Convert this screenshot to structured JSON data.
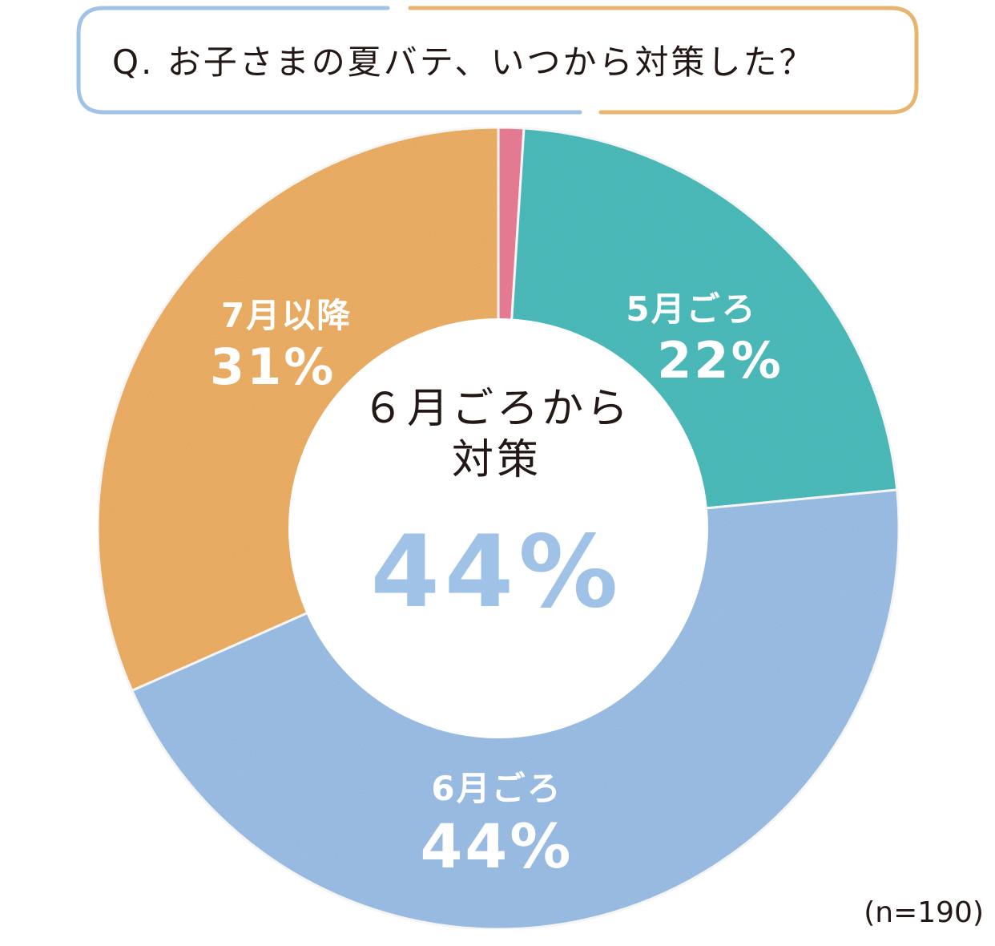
{
  "question": "Q. お子さまの夏バテ、いつから対策した？",
  "colors": {
    "may": "#4fbfbf",
    "june": "#9fc2ea",
    "july": "#f2b267",
    "other": "#ee8099",
    "frame_blue": "#9fc2e6",
    "frame_orange": "#e8b46f",
    "center_accent": "#9fc2e6"
  },
  "center": {
    "line1": "６月ごろから",
    "line2": "対策",
    "value": "44%"
  },
  "labels": {
    "may": {
      "name": "5月ごろ",
      "pct": "22%"
    },
    "june": {
      "name": "6月ごろ",
      "pct": "44%"
    },
    "july": {
      "name": "7月以降",
      "pct": "31%"
    }
  },
  "sample_size": "(n=190)",
  "chart_data": {
    "type": "pie",
    "variant": "donut",
    "title": "Q. お子さまの夏バテ、いつから対策した？",
    "start": "top",
    "direction": "clockwise",
    "slices": [
      {
        "label": "",
        "value": 1,
        "color": "#ee8099"
      },
      {
        "label": "5月ごろ",
        "value": 22,
        "color": "#4fbfbf"
      },
      {
        "label": "6月ごろ",
        "value": 44,
        "color": "#9fc2ea"
      },
      {
        "label": "7月以降",
        "value": 31,
        "color": "#f2b267"
      }
    ]
  }
}
